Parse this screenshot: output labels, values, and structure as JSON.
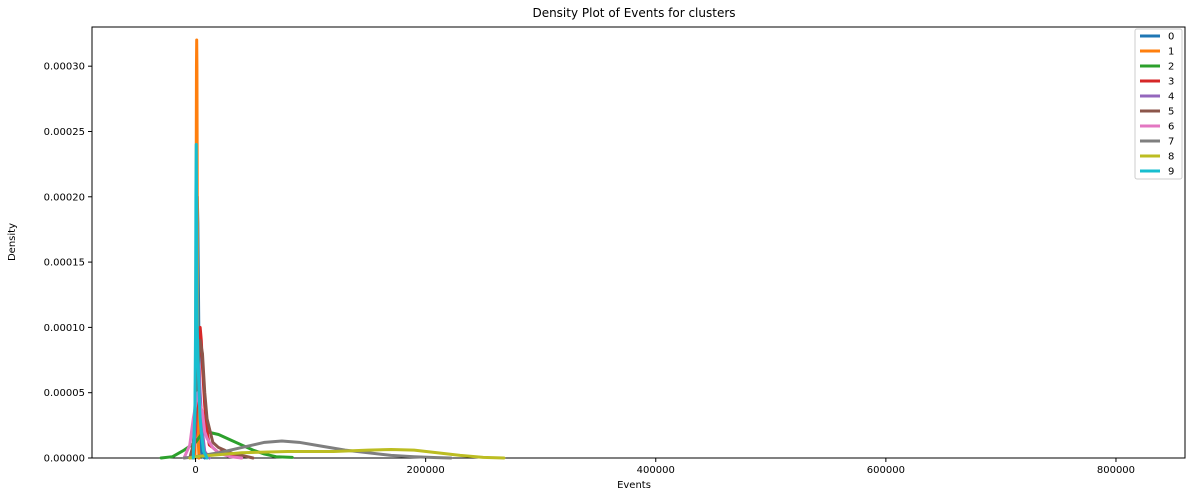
{
  "chart_data": {
    "type": "line",
    "title": "Density Plot of Events for clusters",
    "xlabel": "Events",
    "ylabel": "Density",
    "xlim": [
      -90000,
      860000
    ],
    "ylim": [
      0,
      0.00033
    ],
    "x_ticks": [
      0,
      200000,
      400000,
      600000,
      800000
    ],
    "x_tick_labels": [
      "0",
      "200000",
      "400000",
      "600000",
      "800000"
    ],
    "y_ticks": [
      0,
      5e-05,
      0.0001,
      0.00015,
      0.0002,
      0.00025,
      0.0003
    ],
    "y_tick_labels": [
      "0.00000",
      "0.00005",
      "0.00010",
      "0.00015",
      "0.00020",
      "0.00025",
      "0.00030"
    ],
    "legend_position": "top-right",
    "grid": false,
    "series": [
      {
        "name": "0",
        "color": "#1f77b4",
        "x": [
          -2000,
          -1000,
          0,
          500,
          1000,
          1500,
          2000,
          3000,
          4000,
          5000,
          6000,
          8000
        ],
        "y": [
          0,
          2e-05,
          6e-05,
          0.00012,
          0.00018,
          0.0002,
          0.00018,
          8e-05,
          2e-05,
          5e-06,
          1e-06,
          0
        ]
      },
      {
        "name": "1",
        "color": "#ff7f0e",
        "x": [
          -500,
          0,
          500,
          800,
          1000,
          1200,
          1500,
          2000,
          2500,
          3000
        ],
        "y": [
          0,
          5e-05,
          0.0002,
          0.0003,
          0.00032,
          0.0003,
          0.0002,
          6e-05,
          1e-05,
          0
        ]
      },
      {
        "name": "2",
        "color": "#2ca02c",
        "x": [
          -30000,
          -20000,
          -10000,
          0,
          5000,
          10000,
          20000,
          30000,
          40000,
          50000,
          60000,
          70000,
          84000
        ],
        "y": [
          0,
          1e-06,
          6e-06,
          1.2e-05,
          1.8e-05,
          2e-05,
          1.8e-05,
          1.4e-05,
          1e-05,
          6e-06,
          3e-06,
          1e-06,
          5e-07
        ]
      },
      {
        "name": "3",
        "color": "#d62728",
        "x": [
          -2000,
          0,
          2000,
          3000,
          4000,
          5000,
          6000,
          8000,
          10000,
          12000,
          15000,
          20000,
          25000,
          30000,
          40000
        ],
        "y": [
          0,
          2e-05,
          7e-05,
          9e-05,
          0.0001,
          9e-05,
          7e-05,
          4e-05,
          2e-05,
          1e-05,
          8e-06,
          4e-06,
          6e-06,
          3e-06,
          0
        ]
      },
      {
        "name": "4",
        "color": "#9467bd",
        "x": [
          -3000,
          -1000,
          0,
          1000,
          2000,
          3000,
          4000,
          6000,
          8000,
          12000
        ],
        "y": [
          0,
          1e-05,
          4e-05,
          7e-05,
          8e-05,
          7e-05,
          5e-05,
          2e-05,
          5e-06,
          0
        ]
      },
      {
        "name": "5",
        "color": "#8c564b",
        "x": [
          -5000,
          -2000,
          0,
          2000,
          4000,
          6000,
          8000,
          10000,
          15000,
          20000,
          25000,
          30000,
          40000,
          50000
        ],
        "y": [
          0,
          1e-05,
          4e-05,
          7e-05,
          9e-05,
          8e-05,
          5e-05,
          3e-05,
          1.2e-05,
          8e-06,
          6e-06,
          4e-06,
          2e-06,
          0
        ]
      },
      {
        "name": "6",
        "color": "#e377c2",
        "x": [
          -10000,
          -5000,
          -2000,
          0,
          2000,
          4000,
          6000,
          8000,
          10000,
          15000,
          20000,
          30000,
          40000
        ],
        "y": [
          0,
          1e-05,
          3e-05,
          4e-05,
          5e-05,
          4e-05,
          3.5e-05,
          2e-05,
          1.5e-05,
          8e-06,
          4e-06,
          1e-06,
          0
        ]
      },
      {
        "name": "7",
        "color": "#7f7f7f",
        "x": [
          -10000,
          0,
          20000,
          40000,
          60000,
          75000,
          90000,
          110000,
          130000,
          150000,
          170000,
          190000,
          210000,
          222000
        ],
        "y": [
          0,
          1e-06,
          4e-06,
          8e-06,
          1.2e-05,
          1.3e-05,
          1.2e-05,
          9e-06,
          6e-06,
          4e-06,
          2e-06,
          1e-06,
          3e-07,
          0
        ]
      },
      {
        "name": "8",
        "color": "#bcbd22",
        "x": [
          -5000,
          0,
          40000,
          80000,
          120000,
          150000,
          170000,
          190000,
          210000,
          230000,
          250000,
          268000
        ],
        "y": [
          0,
          1e-06,
          4e-06,
          5e-06,
          5e-06,
          6e-06,
          6.5e-06,
          6e-06,
          4e-06,
          2e-06,
          5e-07,
          0
        ]
      },
      {
        "name": "9",
        "color": "#17becf",
        "x": [
          -2000,
          -500,
          0,
          300,
          600,
          900,
          1200,
          1500,
          2000,
          3000,
          4000,
          5000,
          7000,
          10000
        ],
        "y": [
          0,
          4e-05,
          0.0001,
          0.0002,
          0.00024,
          0.0002,
          0.00014,
          0.0001,
          8e-05,
          5e-05,
          3e-05,
          2e-05,
          5e-06,
          0
        ]
      }
    ]
  }
}
